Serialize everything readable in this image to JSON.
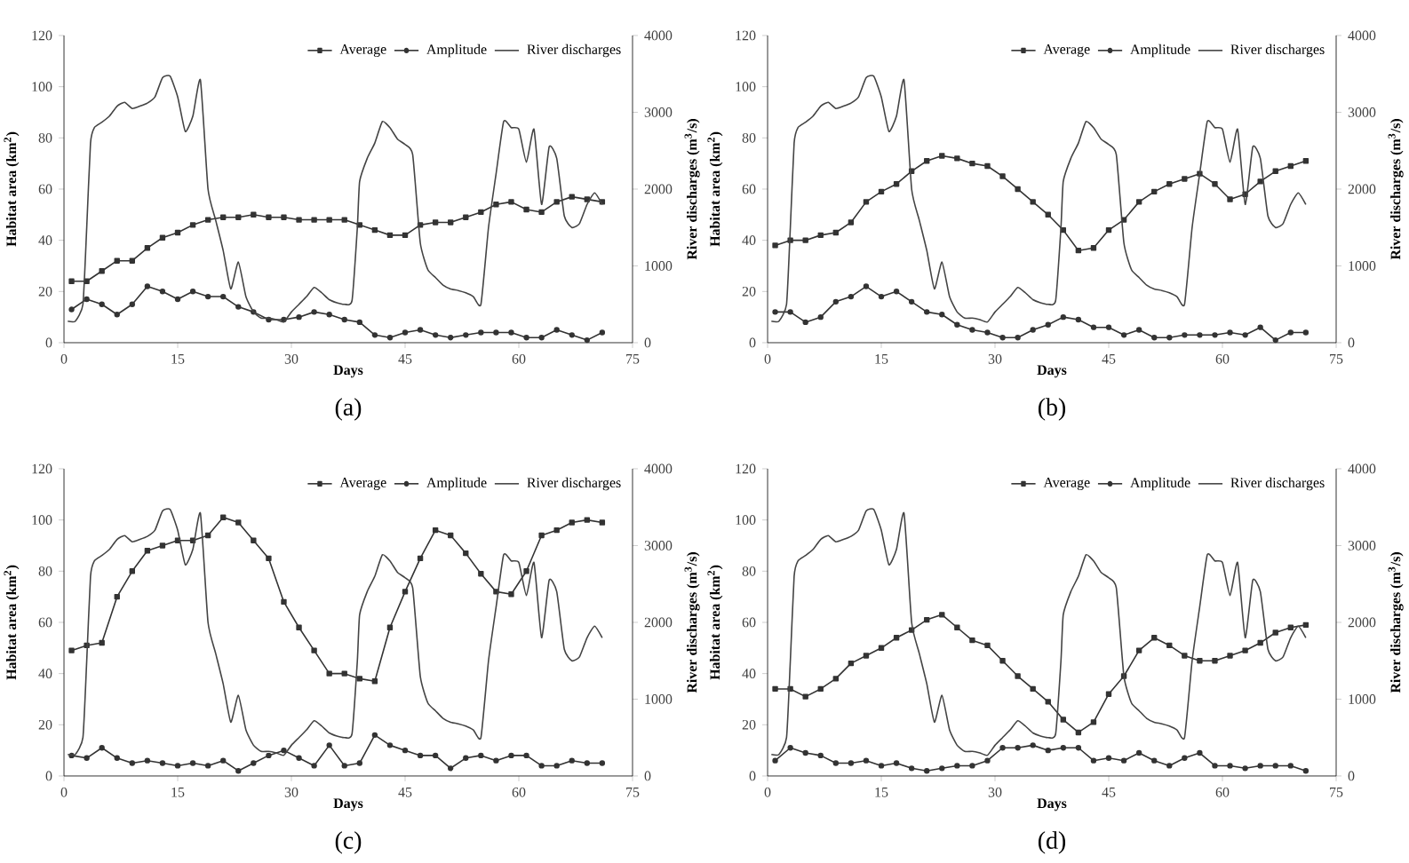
{
  "chart_data": [
    {
      "type": "line",
      "xlabel": "Days",
      "ylabel": "Habitat area (km$^{2}$)",
      "y2label": "River discharges (m$^{3}$/s)",
      "annotations": [
        "(a)"
      ],
      "xlim": [
        0,
        75
      ],
      "xticks": [
        0,
        15,
        30,
        45,
        60,
        75
      ],
      "ylim": [
        0,
        120
      ],
      "yticks": [
        0,
        20,
        40,
        60,
        80,
        100,
        120
      ],
      "y2lim": [
        0,
        4000
      ],
      "y2ticks": [
        0,
        1000,
        2000,
        3000,
        4000
      ],
      "legend": "top right",
      "x": [
        1,
        3,
        5,
        7,
        9,
        11,
        13,
        15,
        17,
        19,
        21,
        23,
        25,
        27,
        29,
        31,
        33,
        35,
        37,
        39,
        41,
        43,
        45,
        47,
        49,
        51,
        53,
        55,
        57,
        59,
        61,
        63,
        65,
        67,
        69,
        71
      ],
      "series": [
        {
          "name": "Average",
          "color": "#333333",
          "marker": "square",
          "values": [
            24,
            24,
            28,
            32,
            32,
            37,
            41,
            43,
            46,
            48,
            49,
            49,
            50,
            49,
            49,
            48,
            48,
            48,
            48,
            46,
            44,
            42,
            42,
            46,
            47,
            47,
            49,
            51,
            54,
            55,
            52,
            51,
            55,
            57,
            56,
            55
          ]
        },
        {
          "name": "Amplitude",
          "color": "#333333",
          "marker": "circle",
          "values": [
            13,
            17,
            15,
            11,
            15,
            22,
            20,
            17,
            20,
            18,
            18,
            14,
            12,
            9,
            9,
            10,
            12,
            11,
            9,
            8,
            3,
            2,
            4,
            5,
            3,
            2,
            3,
            4,
            4,
            4,
            2,
            2,
            5,
            3,
            1,
            4
          ]
        },
        {
          "name": "River discharges",
          "color": "#444444",
          "marker": "none",
          "axis": "y2",
          "x": [
            0.5,
            1.5,
            2.5,
            3,
            3.5,
            4,
            5,
            6,
            7,
            8,
            9,
            10,
            11,
            12,
            13,
            14,
            15,
            16,
            17,
            18,
            19,
            20,
            21,
            22,
            23,
            24,
            25,
            26,
            27,
            28,
            29,
            30,
            31,
            32,
            33,
            34,
            35,
            36,
            37,
            38,
            38.7,
            39,
            40,
            41,
            42,
            43,
            44,
            45,
            46,
            47,
            48,
            49,
            50,
            51,
            52,
            53,
            54,
            55,
            56,
            57,
            58,
            59,
            60,
            61,
            62,
            63,
            64,
            65,
            66,
            67,
            68,
            69,
            70,
            71
          ],
          "values": [
            280,
            280,
            500,
            1500,
            2600,
            2800,
            2870,
            2950,
            3080,
            3130,
            3050,
            3080,
            3120,
            3200,
            3450,
            3470,
            3200,
            2750,
            2950,
            3420,
            2000,
            1600,
            1200,
            700,
            1050,
            600,
            400,
            320,
            320,
            300,
            270,
            400,
            500,
            600,
            720,
            650,
            560,
            520,
            500,
            550,
            1500,
            2100,
            2400,
            2600,
            2880,
            2800,
            2650,
            2580,
            2450,
            1300,
            950,
            850,
            750,
            700,
            680,
            650,
            600,
            500,
            1500,
            2200,
            2880,
            2800,
            2780,
            2350,
            2780,
            1800,
            2550,
            2400,
            1650,
            1500,
            1550,
            1800,
            1950,
            1800
          ]
        }
      ]
    },
    {
      "type": "line",
      "xlabel": "Days",
      "ylabel": "Habitat area (km$^{2}$)",
      "y2label": "River discharges (m$^{3}$/s)",
      "annotations": [
        "(b)"
      ],
      "xlim": [
        0,
        75
      ],
      "xticks": [
        0,
        15,
        30,
        45,
        60,
        75
      ],
      "ylim": [
        0,
        120
      ],
      "yticks": [
        0,
        20,
        40,
        60,
        80,
        100,
        120
      ],
      "y2lim": [
        0,
        4000
      ],
      "y2ticks": [
        0,
        1000,
        2000,
        3000,
        4000
      ],
      "legend": "top right",
      "x": [
        1,
        3,
        5,
        7,
        9,
        11,
        13,
        15,
        17,
        19,
        21,
        23,
        25,
        27,
        29,
        31,
        33,
        35,
        37,
        39,
        41,
        43,
        45,
        47,
        49,
        51,
        53,
        55,
        57,
        59,
        61,
        63,
        65,
        67,
        69,
        71
      ],
      "series": [
        {
          "name": "Average",
          "color": "#333333",
          "marker": "square",
          "values": [
            38,
            40,
            40,
            42,
            43,
            47,
            55,
            59,
            62,
            67,
            71,
            73,
            72,
            70,
            69,
            65,
            60,
            55,
            50,
            44,
            36,
            37,
            44,
            48,
            55,
            59,
            62,
            64,
            66,
            62,
            56,
            58,
            63,
            67,
            69,
            71
          ]
        },
        {
          "name": "Amplitude",
          "color": "#333333",
          "marker": "circle",
          "values": [
            12,
            12,
            8,
            10,
            16,
            18,
            22,
            18,
            20,
            16,
            12,
            11,
            7,
            5,
            4,
            2,
            2,
            5,
            7,
            10,
            9,
            6,
            6,
            3,
            5,
            2,
            2,
            3,
            3,
            3,
            4,
            3,
            6,
            1,
            4,
            4
          ]
        },
        {
          "name": "River discharges",
          "color": "#444444",
          "marker": "none",
          "axis": "y2",
          "x": [
            0.5,
            1.5,
            2.5,
            3,
            3.5,
            4,
            5,
            6,
            7,
            8,
            9,
            10,
            11,
            12,
            13,
            14,
            15,
            16,
            17,
            18,
            19,
            20,
            21,
            22,
            23,
            24,
            25,
            26,
            27,
            28,
            29,
            30,
            31,
            32,
            33,
            34,
            35,
            36,
            37,
            38,
            38.7,
            39,
            40,
            41,
            42,
            43,
            44,
            45,
            46,
            47,
            48,
            49,
            50,
            51,
            52,
            53,
            54,
            55,
            56,
            57,
            58,
            59,
            60,
            61,
            62,
            63,
            64,
            65,
            66,
            67,
            68,
            69,
            70,
            71
          ],
          "values": [
            280,
            280,
            500,
            1500,
            2600,
            2800,
            2870,
            2950,
            3080,
            3130,
            3050,
            3080,
            3120,
            3200,
            3450,
            3470,
            3200,
            2750,
            2950,
            3420,
            2000,
            1600,
            1200,
            700,
            1050,
            600,
            400,
            320,
            320,
            300,
            270,
            400,
            500,
            600,
            720,
            650,
            560,
            520,
            500,
            550,
            1500,
            2100,
            2400,
            2600,
            2880,
            2800,
            2650,
            2580,
            2450,
            1300,
            950,
            850,
            750,
            700,
            680,
            650,
            600,
            500,
            1500,
            2200,
            2880,
            2800,
            2780,
            2350,
            2780,
            1800,
            2550,
            2400,
            1650,
            1500,
            1550,
            1800,
            1950,
            1800
          ]
        }
      ]
    },
    {
      "type": "line",
      "xlabel": "Days",
      "ylabel": "Habitat area (km$^{2}$)",
      "y2label": "River discharges (m$^{3}$/s)",
      "annotations": [
        "(c)"
      ],
      "xlim": [
        0,
        75
      ],
      "xticks": [
        0,
        15,
        30,
        45,
        60,
        75
      ],
      "ylim": [
        0,
        120
      ],
      "yticks": [
        0,
        20,
        40,
        60,
        80,
        100,
        120
      ],
      "y2lim": [
        0,
        4000
      ],
      "y2ticks": [
        0,
        1000,
        2000,
        3000,
        4000
      ],
      "legend": "top right",
      "x": [
        1,
        3,
        5,
        7,
        9,
        11,
        13,
        15,
        17,
        19,
        21,
        23,
        25,
        27,
        29,
        31,
        33,
        35,
        37,
        39,
        41,
        43,
        45,
        47,
        49,
        51,
        53,
        55,
        57,
        59,
        61,
        63,
        65,
        67,
        69,
        71
      ],
      "series": [
        {
          "name": "Average",
          "color": "#333333",
          "marker": "square",
          "values": [
            49,
            51,
            52,
            70,
            80,
            88,
            90,
            92,
            92,
            94,
            101,
            99,
            92,
            85,
            68,
            58,
            49,
            40,
            40,
            38,
            37,
            58,
            72,
            85,
            96,
            94,
            87,
            79,
            72,
            71,
            80,
            94,
            96,
            99,
            100,
            99
          ]
        },
        {
          "name": "Amplitude",
          "color": "#333333",
          "marker": "circle",
          "values": [
            8,
            7,
            11,
            7,
            5,
            6,
            5,
            4,
            5,
            4,
            6,
            2,
            5,
            8,
            10,
            7,
            4,
            12,
            4,
            5,
            16,
            12,
            10,
            8,
            8,
            3,
            7,
            8,
            6,
            8,
            8,
            4,
            4,
            6,
            5,
            5
          ]
        },
        {
          "name": "River discharges",
          "color": "#444444",
          "marker": "none",
          "axis": "y2",
          "x": [
            0.5,
            1.5,
            2.5,
            3,
            3.5,
            4,
            5,
            6,
            7,
            8,
            9,
            10,
            11,
            12,
            13,
            14,
            15,
            16,
            17,
            18,
            19,
            20,
            21,
            22,
            23,
            24,
            25,
            26,
            27,
            28,
            29,
            30,
            31,
            32,
            33,
            34,
            35,
            36,
            37,
            38,
            38.7,
            39,
            40,
            41,
            42,
            43,
            44,
            45,
            46,
            47,
            48,
            49,
            50,
            51,
            52,
            53,
            54,
            55,
            56,
            57,
            58,
            59,
            60,
            61,
            62,
            63,
            64,
            65,
            66,
            67,
            68,
            69,
            70,
            71
          ],
          "values": [
            280,
            280,
            500,
            1500,
            2600,
            2800,
            2870,
            2950,
            3080,
            3130,
            3050,
            3080,
            3120,
            3200,
            3450,
            3470,
            3200,
            2750,
            2950,
            3420,
            2000,
            1600,
            1200,
            700,
            1050,
            600,
            400,
            320,
            320,
            300,
            270,
            400,
            500,
            600,
            720,
            650,
            560,
            520,
            500,
            550,
            1500,
            2100,
            2400,
            2600,
            2880,
            2800,
            2650,
            2580,
            2450,
            1300,
            950,
            850,
            750,
            700,
            680,
            650,
            600,
            500,
            1500,
            2200,
            2880,
            2800,
            2780,
            2350,
            2780,
            1800,
            2550,
            2400,
            1650,
            1500,
            1550,
            1800,
            1950,
            1800
          ]
        }
      ]
    },
    {
      "type": "line",
      "xlabel": "Days",
      "ylabel": "Habitat area (km$^{2}$)",
      "y2label": "River discharges (m$^{3}$/s)",
      "annotations": [
        "(d)"
      ],
      "xlim": [
        0,
        75
      ],
      "xticks": [
        0,
        15,
        30,
        45,
        60,
        75
      ],
      "ylim": [
        0,
        120
      ],
      "yticks": [
        0,
        20,
        40,
        60,
        80,
        100,
        120
      ],
      "y2lim": [
        0,
        4000
      ],
      "y2ticks": [
        0,
        1000,
        2000,
        3000,
        4000
      ],
      "legend": "top right",
      "x": [
        1,
        3,
        5,
        7,
        9,
        11,
        13,
        15,
        17,
        19,
        21,
        23,
        25,
        27,
        29,
        31,
        33,
        35,
        37,
        39,
        41,
        43,
        45,
        47,
        49,
        51,
        53,
        55,
        57,
        59,
        61,
        63,
        65,
        67,
        69,
        71
      ],
      "series": [
        {
          "name": "Average",
          "color": "#333333",
          "marker": "square",
          "values": [
            34,
            34,
            31,
            34,
            38,
            44,
            47,
            50,
            54,
            57,
            61,
            63,
            58,
            53,
            51,
            45,
            39,
            34,
            29,
            22,
            17,
            21,
            32,
            39,
            49,
            54,
            51,
            47,
            45,
            45,
            47,
            49,
            52,
            56,
            58,
            59
          ]
        },
        {
          "name": "Amplitude",
          "color": "#333333",
          "marker": "circle",
          "values": [
            6,
            11,
            9,
            8,
            5,
            5,
            6,
            4,
            5,
            3,
            2,
            3,
            4,
            4,
            6,
            11,
            11,
            12,
            10,
            11,
            11,
            6,
            7,
            6,
            9,
            6,
            4,
            7,
            9,
            4,
            4,
            3,
            4,
            4,
            4,
            2
          ]
        },
        {
          "name": "River discharges",
          "color": "#444444",
          "marker": "none",
          "axis": "y2",
          "x": [
            0.5,
            1.5,
            2.5,
            3,
            3.5,
            4,
            5,
            6,
            7,
            8,
            9,
            10,
            11,
            12,
            13,
            14,
            15,
            16,
            17,
            18,
            19,
            20,
            21,
            22,
            23,
            24,
            25,
            26,
            27,
            28,
            29,
            30,
            31,
            32,
            33,
            34,
            35,
            36,
            37,
            38,
            38.7,
            39,
            40,
            41,
            42,
            43,
            44,
            45,
            46,
            47,
            48,
            49,
            50,
            51,
            52,
            53,
            54,
            55,
            56,
            57,
            58,
            59,
            60,
            61,
            62,
            63,
            64,
            65,
            66,
            67,
            68,
            69,
            70,
            71
          ],
          "values": [
            280,
            280,
            500,
            1500,
            2600,
            2800,
            2870,
            2950,
            3080,
            3130,
            3050,
            3080,
            3120,
            3200,
            3450,
            3470,
            3200,
            2750,
            2950,
            3420,
            2000,
            1600,
            1200,
            700,
            1050,
            600,
            400,
            320,
            320,
            300,
            270,
            400,
            500,
            600,
            720,
            650,
            560,
            520,
            500,
            550,
            1500,
            2100,
            2400,
            2600,
            2880,
            2800,
            2650,
            2580,
            2450,
            1300,
            950,
            850,
            750,
            700,
            680,
            650,
            600,
            500,
            1500,
            2200,
            2880,
            2800,
            2780,
            2350,
            2780,
            1800,
            2550,
            2400,
            1650,
            1500,
            1550,
            1800,
            1950,
            1800
          ]
        }
      ]
    }
  ]
}
